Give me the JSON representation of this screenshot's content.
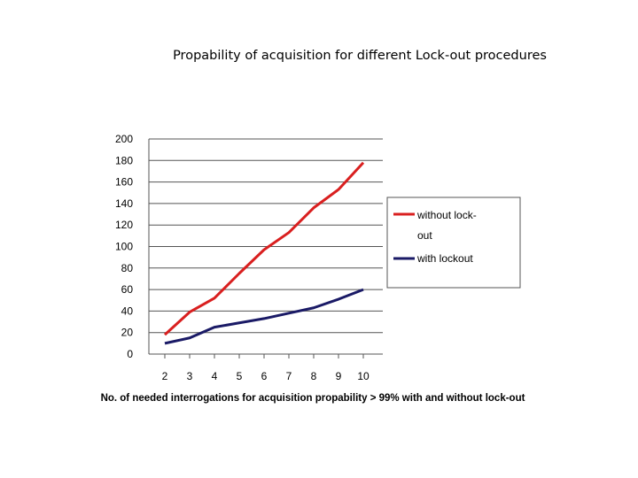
{
  "chart_data": {
    "type": "line",
    "title": "Propability of acquisition for different Lock-out procedures",
    "xlabel": "No. of needed interrogations for acquisition propability > 99% with and without lock-out",
    "ylabel": "",
    "x": [
      2,
      3,
      4,
      5,
      6,
      7,
      8,
      9,
      10
    ],
    "ylim": [
      0,
      200
    ],
    "yticks": [
      0,
      20,
      40,
      60,
      80,
      100,
      120,
      140,
      160,
      180,
      200
    ],
    "grid": true,
    "legend_position": "right",
    "series": [
      {
        "name": "without lock-out",
        "legend_lines": [
          "without lock-",
          "out"
        ],
        "color": "#d91f1f",
        "values": [
          18,
          39,
          52,
          75,
          97,
          113,
          136,
          153,
          178
        ]
      },
      {
        "name": "with lockout",
        "legend_lines": [
          "with lockout"
        ],
        "color": "#1a1a66",
        "values": [
          10,
          15,
          25,
          29,
          33,
          38,
          43,
          51,
          60
        ]
      }
    ]
  }
}
